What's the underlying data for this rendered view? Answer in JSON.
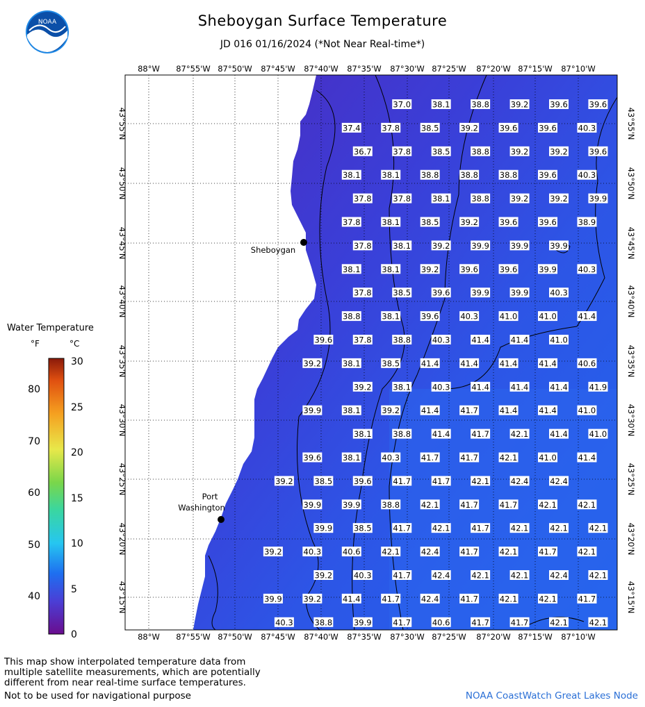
{
  "header": {
    "title": "Sheboygan Surface Temperature",
    "subtitle": "JD 016 01/16/2024 (*Not Near Real-time*)",
    "logo_text": "NOAA"
  },
  "map": {
    "lon_labels": [
      "88°W",
      "87°55'W",
      "87°50'W",
      "87°45'W",
      "87°40'W",
      "87°35'W",
      "87°30'W",
      "87°25'W",
      "87°20'W",
      "87°15'W",
      "87°10'W"
    ],
    "lat_labels": [
      "43°55'N",
      "43°50'N",
      "43°45'N",
      "43°40'N",
      "43°35'N",
      "43°30'N",
      "43°25'N",
      "43°20'N",
      "43°15'N"
    ],
    "cities": [
      {
        "name": "Sheboygan"
      },
      {
        "name": "Port Washington"
      }
    ],
    "temps_f": [
      [
        "",
        "",
        "",
        "",
        "",
        "37.0",
        "38.1",
        "38.8",
        "39.2",
        "39.6",
        "39.6",
        ""
      ],
      [
        "",
        "",
        "",
        "",
        "37.4",
        "37.8",
        "38.5",
        "39.2",
        "39.6",
        "39.6",
        "40.3",
        ""
      ],
      [
        "",
        "",
        "",
        "",
        "36.7",
        "37.8",
        "38.5",
        "38.8",
        "39.2",
        "39.2",
        "39.6",
        ""
      ],
      [
        "",
        "",
        "",
        "",
        "38.1",
        "38.1",
        "38.8",
        "38.8",
        "38.8",
        "39.6",
        "40.3",
        ""
      ],
      [
        "",
        "",
        "",
        "",
        "37.8",
        "37.8",
        "38.1",
        "38.8",
        "39.2",
        "39.2",
        "39.9",
        ""
      ],
      [
        "",
        "",
        "",
        "",
        "37.8",
        "38.1",
        "38.5",
        "39.2",
        "39.6",
        "39.6",
        "38.9",
        ""
      ],
      [
        "",
        "",
        "",
        "",
        "37.8",
        "38.1",
        "39.2",
        "39.9",
        "39.9",
        "39.9",
        ""
      ],
      [
        "",
        "",
        "",
        "",
        "38.1",
        "38.1",
        "39.2",
        "39.6",
        "39.6",
        "39.9",
        "40.3",
        ""
      ],
      [
        "",
        "",
        "",
        "",
        "37.8",
        "38.5",
        "39.6",
        "39.9",
        "39.9",
        "40.3",
        ""
      ],
      [
        "",
        "",
        "",
        "",
        "38.8",
        "38.1",
        "39.6",
        "40.3",
        "41.0",
        "41.0",
        "41.4",
        ""
      ],
      [
        "",
        "",
        "",
        "39.6",
        "37.8",
        "38.8",
        "40.3",
        "41.4",
        "41.4",
        "41.0",
        ""
      ],
      [
        "",
        "",
        "",
        "39.2",
        "38.1",
        "38.5",
        "41.4",
        "41.4",
        "41.4",
        "41.4",
        "40.6",
        ""
      ],
      [
        "",
        "",
        "",
        "",
        "39.2",
        "38.1",
        "40.3",
        "41.4",
        "41.4",
        "41.4",
        "41.9",
        ""
      ],
      [
        "",
        "",
        "",
        "39.9",
        "38.1",
        "39.2",
        "41.4",
        "41.7",
        "41.4",
        "41.4",
        "41.0",
        ""
      ],
      [
        "",
        "",
        "",
        "",
        "38.1",
        "38.8",
        "41.4",
        "41.7",
        "42.1",
        "41.4",
        "41.0",
        ""
      ],
      [
        "",
        "",
        "",
        "39.6",
        "38.1",
        "40.3",
        "41.7",
        "41.7",
        "42.1",
        "41.0",
        "41.4",
        ""
      ],
      [
        "",
        "",
        "39.2",
        "38.5",
        "39.6",
        "41.7",
        "41.7",
        "42.1",
        "42.4",
        "42.4",
        ""
      ],
      [
        "",
        "",
        "",
        "39.9",
        "39.9",
        "38.8",
        "42.1",
        "41.7",
        "41.7",
        "42.1",
        "42.1",
        "42.4"
      ],
      [
        "",
        "",
        "",
        "39.9",
        "38.5",
        "41.7",
        "42.1",
        "41.7",
        "42.1",
        "42.1",
        "42.1",
        ""
      ],
      [
        "",
        "",
        "39.2",
        "40.3",
        "40.6",
        "42.1",
        "42.4",
        "41.7",
        "42.1",
        "41.7",
        "42.1",
        ""
      ],
      [
        "",
        "",
        "",
        "39.2",
        "40.3",
        "41.7",
        "42.4",
        "42.1",
        "42.1",
        "42.4",
        "42.1",
        ""
      ],
      [
        "",
        "",
        "39.9",
        "39.2",
        "41.4",
        "41.7",
        "42.4",
        "41.7",
        "42.1",
        "42.1",
        "41.7",
        ""
      ],
      [
        "",
        "",
        "40.3",
        "38.8",
        "39.9",
        "41.7",
        "40.6",
        "41.7",
        "41.7",
        "42.1",
        "42.1",
        ""
      ]
    ]
  },
  "legend": {
    "title": "Water Temperature",
    "unit_f": "°F",
    "unit_c": "°C",
    "f_ticks": [
      "80",
      "70",
      "60",
      "50",
      "40"
    ],
    "c_ticks": [
      "30",
      "25",
      "20",
      "15",
      "10",
      "5",
      "0"
    ]
  },
  "footer": {
    "disclaimer_lines": [
      "This map show interpolated temperature data from",
      "multiple satellite measurements, which are potentially",
      "different from near real-time surface temperatures."
    ],
    "nav_note": "Not to be used for navigational purpose",
    "credit": "NOAA CoastWatch Great Lakes Node"
  }
}
